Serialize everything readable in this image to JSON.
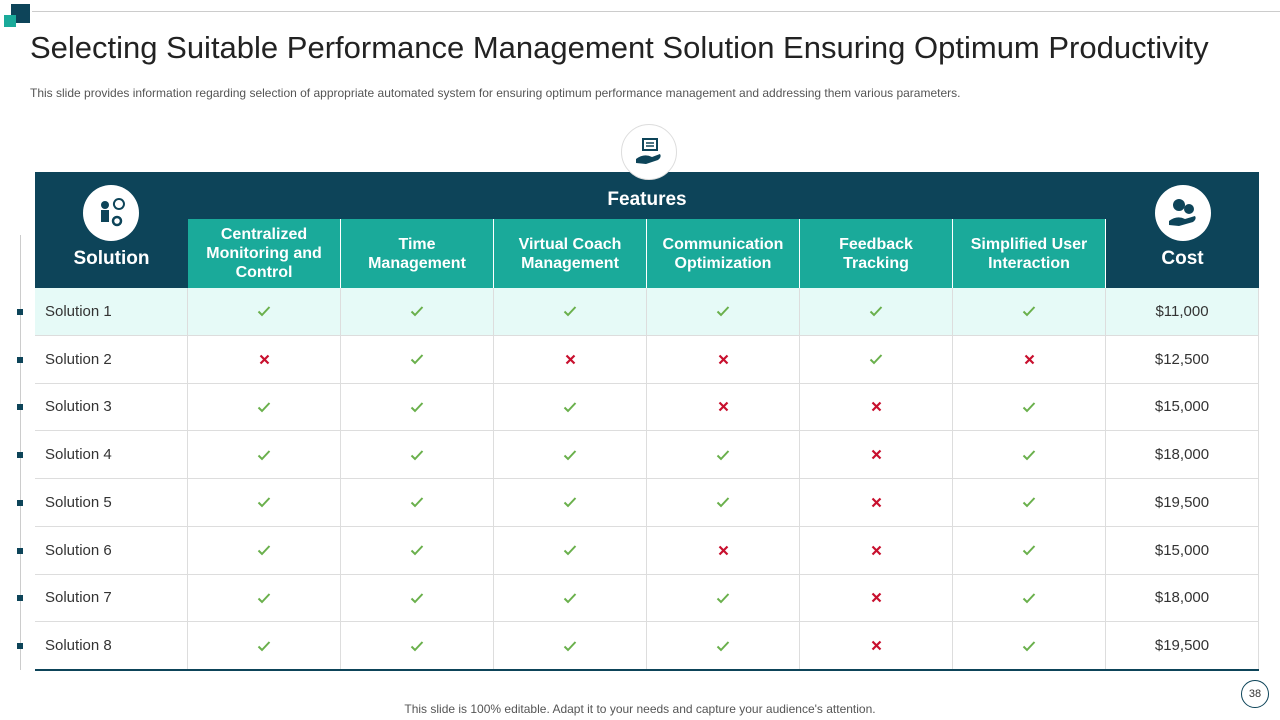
{
  "header": {
    "title": "Selecting Suitable Performance Management Solution Ensuring Optimum Productivity",
    "subtitle": "This slide provides information regarding selection of appropriate automated system for ensuring optimum performance management and addressing them various parameters."
  },
  "table": {
    "features_label": "Features",
    "columns": [
      "Solution",
      "Centralized Monitoring and Control",
      "Time Management",
      "Virtual Coach Management",
      "Communication Optimization",
      "Feedback Tracking",
      "Simplified User Interaction",
      "Cost"
    ],
    "rows": [
      {
        "solution": "Solution 1",
        "features": [
          true,
          true,
          true,
          true,
          true,
          true
        ],
        "cost": "$11,000"
      },
      {
        "solution": "Solution 2",
        "features": [
          false,
          true,
          false,
          false,
          true,
          false
        ],
        "cost": "$12,500"
      },
      {
        "solution": "Solution 3",
        "features": [
          true,
          true,
          true,
          false,
          false,
          true
        ],
        "cost": "$15,000"
      },
      {
        "solution": "Solution 4",
        "features": [
          true,
          true,
          true,
          true,
          false,
          true
        ],
        "cost": "$18,000"
      },
      {
        "solution": "Solution 5",
        "features": [
          true,
          true,
          true,
          true,
          false,
          true
        ],
        "cost": "$19,500"
      },
      {
        "solution": "Solution 6",
        "features": [
          true,
          true,
          true,
          false,
          false,
          true
        ],
        "cost": "$15,000"
      },
      {
        "solution": "Solution 7",
        "features": [
          true,
          true,
          true,
          true,
          false,
          true
        ],
        "cost": "$18,000"
      },
      {
        "solution": "Solution 8",
        "features": [
          true,
          true,
          true,
          true,
          false,
          true
        ],
        "cost": "$19,500"
      }
    ]
  },
  "footer": {
    "note": "This slide is 100% editable. Adapt it to your needs and capture your audience's attention.",
    "page": "38"
  }
}
